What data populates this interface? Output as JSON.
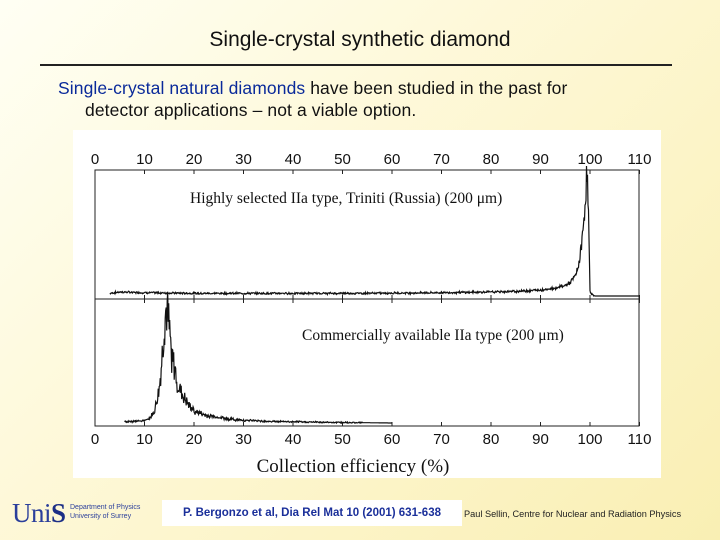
{
  "slide": {
    "title": "Single-crystal synthetic diamond",
    "intro_highlight": "Single-crystal natural diamonds",
    "intro_rest": " have been studied in the past for",
    "intro_line2": "detector applications – not a viable option.",
    "reference": "P. Bergonzo et al, Dia Rel Mat 10 (2001) 631-638",
    "credit": "Paul Sellin, Centre for Nuclear and Radiation Physics",
    "logo": {
      "uni": "Uni",
      "s": "S",
      "dept_line1": "Department of Physics",
      "dept_line2": "University of Surrey"
    }
  },
  "chart_data": {
    "type": "line",
    "xlabel": "Collection efficiency (%)",
    "xlim": [
      0,
      110
    ],
    "ticks": [
      "0",
      "10",
      "20",
      "30",
      "40",
      "50",
      "60",
      "70",
      "80",
      "90",
      "100",
      "110"
    ],
    "panels": [
      {
        "label": "Highly selected IIa type, Triniti (Russia) (200 μm)",
        "series": [
          {
            "x": [
              3,
              5,
              10,
              20,
              30,
              40,
              50,
              60,
              70,
              80,
              85,
              90,
              93,
              95,
              96,
              97,
              97.5,
              98,
              98.5,
              99,
              99.4,
              99.7,
              100,
              100.5,
              101,
              110
            ],
            "y": [
              2,
              3,
              2.5,
              2,
              2,
              2,
              2,
              2.2,
              2.5,
              3,
              3.5,
              4.5,
              6,
              8,
              10,
              15,
              20,
              30,
              45,
              70,
              95,
              60,
              3,
              1,
              0,
              0
            ]
          }
        ]
      },
      {
        "label": "Commercially available IIa type (200 μm)",
        "series": [
          {
            "x": [
              6,
              8,
              10,
              11,
              12,
              13,
              13.5,
              14,
              14.5,
              15,
              15.5,
              16,
              17,
              18,
              19,
              20,
              22,
              25,
              28,
              30,
              35,
              40,
              50,
              60
            ],
            "y": [
              1,
              1.5,
              2,
              4,
              10,
              30,
              55,
              88,
              100,
              80,
              60,
              48,
              30,
              22,
              15,
              11,
              7,
              5,
              3,
              2.5,
              1.5,
              1,
              0.5,
              0
            ]
          }
        ]
      }
    ]
  }
}
